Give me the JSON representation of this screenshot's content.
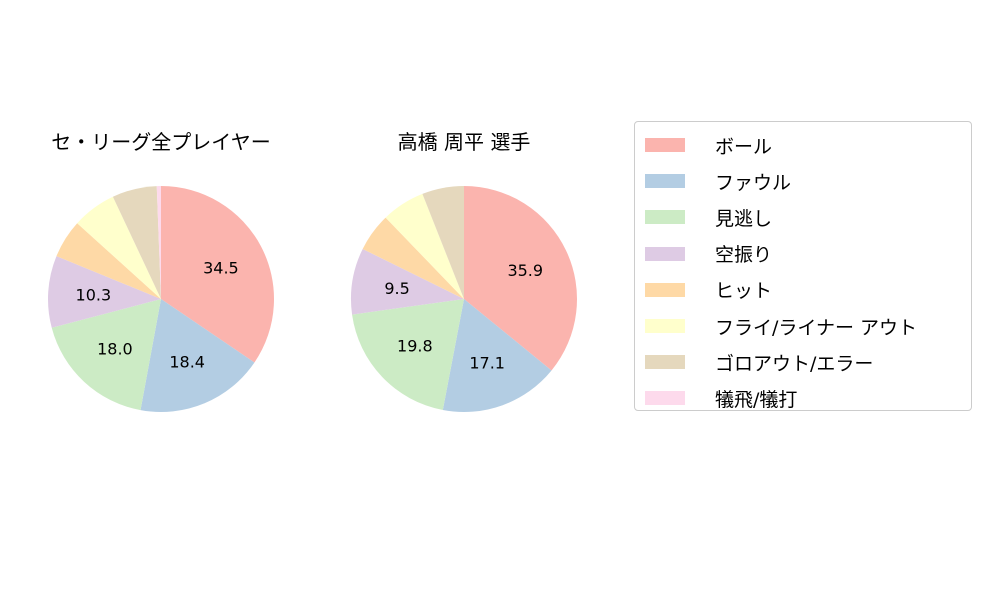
{
  "chart_data": [
    {
      "type": "pie",
      "title": "セ・リーグ全プレイヤー",
      "categories": [
        "ボール",
        "ファウル",
        "見逃し",
        "空振り",
        "ヒット",
        "フライ/ライナー アウト",
        "ゴロアウト/エラー",
        "犠飛/犠打"
      ],
      "values": [
        34.5,
        18.4,
        18.0,
        10.3,
        5.5,
        6.3,
        6.4,
        0.6
      ],
      "labels": [
        "34.5",
        "18.4",
        "18.0",
        "10.3",
        "",
        "",
        "",
        ""
      ]
    },
    {
      "type": "pie",
      "title": "高橋 周平  選手",
      "categories": [
        "ボール",
        "ファウル",
        "見逃し",
        "空振り",
        "ヒット",
        "フライ/ライナー アウト",
        "ゴロアウト/エラー",
        "犠飛/犠打"
      ],
      "values": [
        35.9,
        17.1,
        19.8,
        9.5,
        5.5,
        6.2,
        6.0,
        0
      ],
      "labels": [
        "35.9",
        "17.1",
        "19.8",
        "9.5",
        "",
        "",
        "",
        ""
      ]
    }
  ],
  "legend": {
    "placement": "right",
    "items": [
      "ボール",
      "ファウル",
      "見逃し",
      "空振り",
      "ヒット",
      "フライ/ライナー アウト",
      "ゴロアウト/エラー",
      "犠飛/犠打"
    ]
  },
  "colors": [
    "#fbb4ae",
    "#b3cde3",
    "#ccebc5",
    "#decbe4",
    "#fed9a6",
    "#ffffcc",
    "#e5d8bd",
    "#fddaec"
  ]
}
